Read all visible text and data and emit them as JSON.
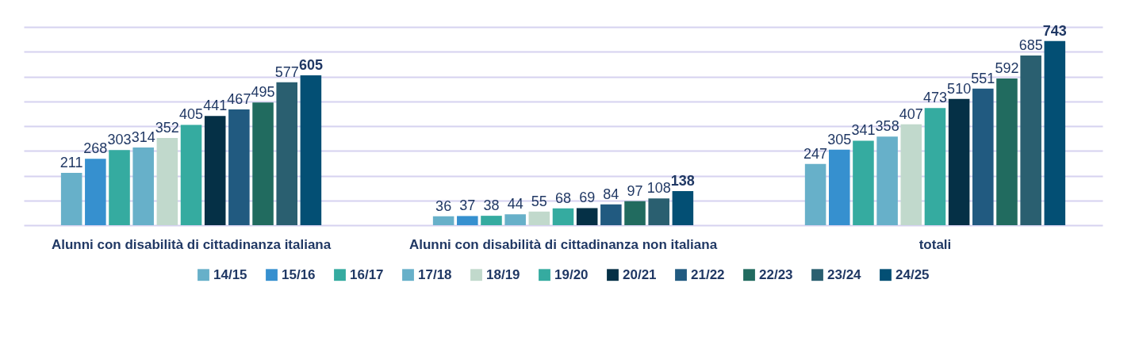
{
  "chart_data": {
    "type": "bar",
    "categories": [
      "Alunni con disabilità di cittadinanza italiana",
      "Alunni con disabilità di cittadinanza non italiana",
      "totali"
    ],
    "series": [
      {
        "name": "14/15",
        "color": "#67b0c9",
        "values": [
          211,
          36,
          247
        ]
      },
      {
        "name": "15/16",
        "color": "#3690cf",
        "values": [
          268,
          37,
          305
        ]
      },
      {
        "name": "16/17",
        "color": "#35aba0",
        "values": [
          303,
          38,
          341
        ]
      },
      {
        "name": "17/18",
        "color": "#67b0c9",
        "values": [
          314,
          44,
          358
        ]
      },
      {
        "name": "18/19",
        "color": "#c1d9cc",
        "values": [
          352,
          55,
          407
        ]
      },
      {
        "name": "19/20",
        "color": "#35aba0",
        "values": [
          405,
          68,
          473
        ]
      },
      {
        "name": "20/21",
        "color": "#053046",
        "values": [
          441,
          69,
          510
        ]
      },
      {
        "name": "21/22",
        "color": "#215a80",
        "values": [
          467,
          84,
          551
        ]
      },
      {
        "name": "22/23",
        "color": "#216b5f",
        "values": [
          495,
          97,
          592
        ]
      },
      {
        "name": "23/24",
        "color": "#2a5f70",
        "values": [
          577,
          108,
          685
        ]
      },
      {
        "name": "24/25",
        "color": "#034f74",
        "values": [
          605,
          138,
          743
        ]
      }
    ],
    "ylim": [
      0,
      800
    ],
    "yticks": [
      {
        "value": 0,
        "label": null
      },
      {
        "value": 100,
        "label": null
      },
      {
        "value": 200,
        "label": null
      },
      {
        "value": 300,
        "label": null
      },
      {
        "value": 400,
        "label": null
      },
      {
        "value": 500,
        "label": null
      },
      {
        "value": 600,
        "label": null
      },
      {
        "value": 700,
        "label": null
      },
      {
        "value": 800,
        "label": null
      }
    ],
    "tick_labels": "x",
    "grid": "y",
    "legend": "bottom",
    "data_labels": true
  }
}
